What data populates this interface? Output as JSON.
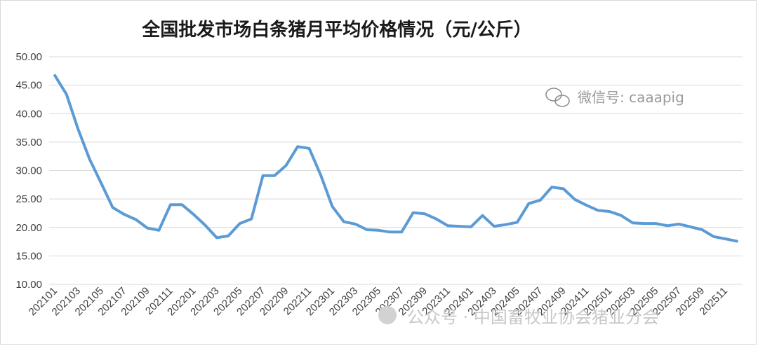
{
  "watermarks": {
    "wechat_id": "微信号: caaapig",
    "footer": "公众号 · 中国畜牧业协会猪业分会"
  },
  "colors": {
    "line": "#5b9bd5",
    "grid": "#d9d9d9",
    "text": "#404040"
  },
  "chart_data": {
    "type": "line",
    "title": "全国批发市场白条猪月平均价格情况（元/公斤）",
    "xlabel": "",
    "ylabel": "",
    "ylim": [
      10,
      50
    ],
    "y_ticks": [
      "50.00",
      "45.00",
      "40.00",
      "35.00",
      "30.00",
      "25.00",
      "20.00",
      "15.00",
      "10.00"
    ],
    "grid": "horizontal",
    "legend": "none",
    "x_tick_labels": [
      "202101",
      "202103",
      "202105",
      "202107",
      "202109",
      "202111",
      "202201",
      "202203",
      "202205",
      "202207",
      "202209",
      "202211",
      "202301",
      "202303",
      "202305",
      "202307",
      "202309",
      "202311",
      "202401",
      "202403",
      "202405",
      "202407",
      "202409",
      "202411",
      "202501",
      "202503",
      "202505",
      "202507",
      "202509",
      "202511"
    ],
    "x": [
      "202101",
      "202102",
      "202103",
      "202104",
      "202105",
      "202106",
      "202107",
      "202108",
      "202109",
      "202110",
      "202111",
      "202112",
      "202201",
      "202202",
      "202203",
      "202204",
      "202205",
      "202206",
      "202207",
      "202208",
      "202209",
      "202210",
      "202211",
      "202212",
      "202301",
      "202302",
      "202303",
      "202304",
      "202305",
      "202306",
      "202307",
      "202308",
      "202309",
      "202310",
      "202311",
      "202312",
      "202401",
      "202402",
      "202403",
      "202404",
      "202405",
      "202406",
      "202407",
      "202408",
      "202409",
      "202410",
      "202411",
      "202412",
      "202501",
      "202502",
      "202503",
      "202504",
      "202505",
      "202506",
      "202507",
      "202508",
      "202509",
      "202510",
      "202511",
      "202512"
    ],
    "series": [
      {
        "values": [
          46.7,
          43.4,
          37.3,
          32.0,
          27.8,
          23.5,
          22.3,
          21.4,
          19.9,
          19.5,
          24.0,
          24.0,
          22.3,
          20.4,
          18.2,
          18.5,
          20.7,
          21.5,
          29.1,
          29.1,
          30.9,
          34.2,
          33.9,
          29.2,
          23.7,
          21.0,
          20.6,
          19.6,
          19.5,
          19.2,
          19.2,
          22.6,
          22.4,
          21.5,
          20.3,
          20.2,
          20.1,
          22.1,
          20.2,
          20.5,
          20.9,
          24.2,
          24.8,
          27.1,
          26.8,
          24.9,
          23.9,
          23.0,
          22.8,
          22.1,
          20.8,
          20.7,
          20.7,
          20.3,
          20.6,
          20.1,
          19.6,
          18.4,
          18.0,
          17.6
        ]
      }
    ]
  }
}
